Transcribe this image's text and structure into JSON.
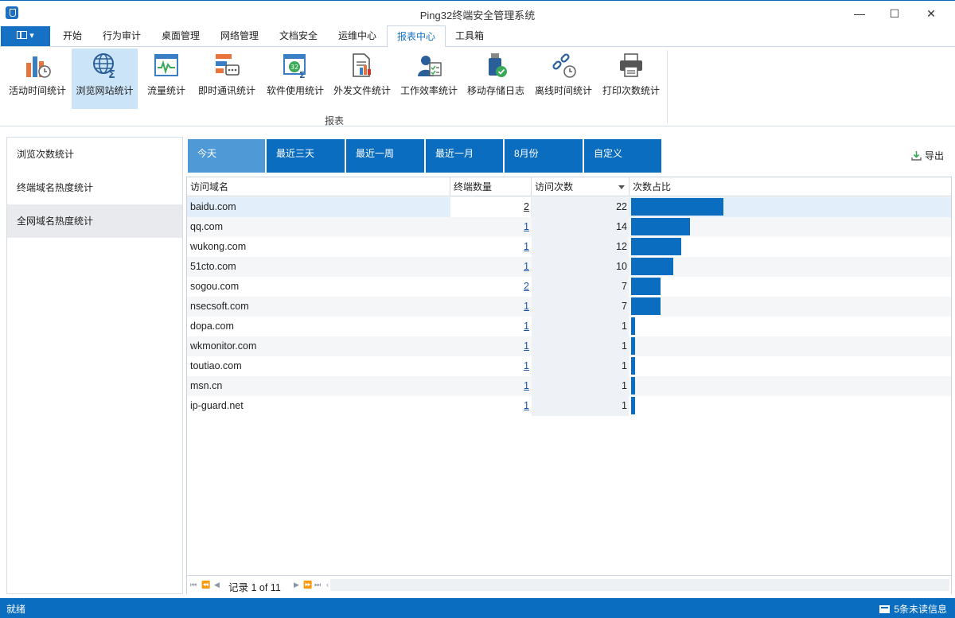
{
  "window": {
    "title": "Ping32终端安全管理系统"
  },
  "ribbon_tabs": [
    "开始",
    "行为审计",
    "桌面管理",
    "网络管理",
    "文档安全",
    "运维中心",
    "报表中心",
    "工具箱"
  ],
  "ribbon_active_tab": "报表中心",
  "ribbon_buttons": [
    {
      "label": "活动时间统计",
      "icon": "activity-time-chart-icon"
    },
    {
      "label": "浏览网站统计",
      "icon": "globe-sum-icon"
    },
    {
      "label": "流量统计",
      "icon": "traffic-monitor-icon"
    },
    {
      "label": "即时通讯统计",
      "icon": "chat-stats-icon"
    },
    {
      "label": "软件使用统计",
      "icon": "software-usage-icon"
    },
    {
      "label": "外发文件统计",
      "icon": "outgoing-file-icon"
    },
    {
      "label": "工作效率统计",
      "icon": "work-efficiency-icon"
    },
    {
      "label": "移动存储日志",
      "icon": "usb-log-icon"
    },
    {
      "label": "离线时间统计",
      "icon": "offline-time-icon"
    },
    {
      "label": "打印次数统计",
      "icon": "printer-icon"
    }
  ],
  "ribbon_group_label": "报表",
  "left_nav": [
    "浏览次数统计",
    "终端域名热度统计",
    "全网域名热度统计"
  ],
  "date_tabs": [
    "今天",
    "最近三天",
    "最近一周",
    "最近一月",
    "8月份",
    "自定义"
  ],
  "export_label": "导出",
  "table": {
    "columns": [
      "访问域名",
      "终端数量",
      "访问次数",
      "次数占比"
    ],
    "rows": [
      {
        "domain": "baidu.com",
        "terminals": "2",
        "visits": "22"
      },
      {
        "domain": "qq.com",
        "terminals": "1",
        "visits": "14"
      },
      {
        "domain": "wukong.com",
        "terminals": "1",
        "visits": "12"
      },
      {
        "domain": "51cto.com",
        "terminals": "1",
        "visits": "10"
      },
      {
        "domain": "sogou.com",
        "terminals": "2",
        "visits": "7"
      },
      {
        "domain": "nsecsoft.com",
        "terminals": "1",
        "visits": "7"
      },
      {
        "domain": "dopa.com",
        "terminals": "1",
        "visits": "1"
      },
      {
        "domain": "wkmonitor.com",
        "terminals": "1",
        "visits": "1"
      },
      {
        "domain": "toutiao.com",
        "terminals": "1",
        "visits": "1"
      },
      {
        "domain": "msn.cn",
        "terminals": "1",
        "visits": "1"
      },
      {
        "domain": "ip-guard.net",
        "terminals": "1",
        "visits": "1"
      }
    ]
  },
  "pager": {
    "text": "记录 1 of 11"
  },
  "status": {
    "left": "就绪",
    "right": "5条未读信息"
  },
  "colors": {
    "accent": "#0b6dc0",
    "active_tab": "#4f9ad6",
    "selected_nav": "#cce4f7"
  }
}
